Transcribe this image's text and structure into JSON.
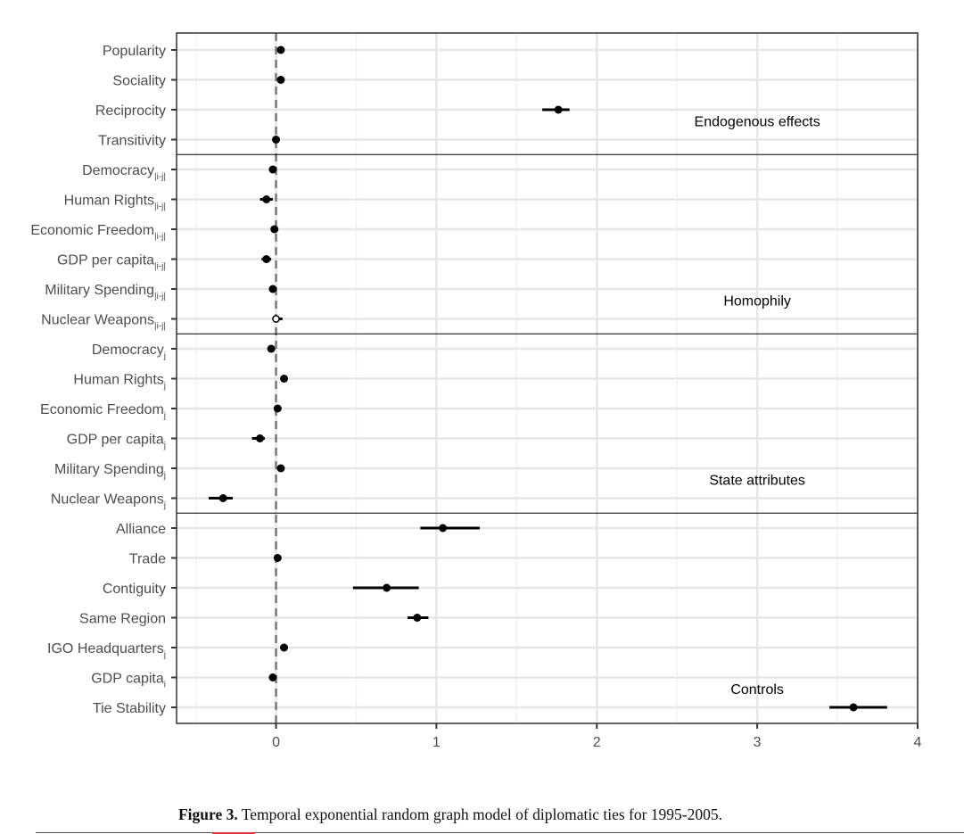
{
  "chart_data": {
    "type": "scatter",
    "subtype": "coefficient-plot",
    "xlim": [
      -0.62,
      4.0
    ],
    "x_ticks": [
      0,
      1,
      2,
      3,
      4
    ],
    "reference_line_x": 0,
    "grid": true,
    "rows": [
      {
        "label": "Popularity",
        "sub": "",
        "estimate": 0.03,
        "lo": 0.03,
        "hi": 0.03,
        "open": false
      },
      {
        "label": "Sociality",
        "sub": "",
        "estimate": 0.03,
        "lo": 0.03,
        "hi": 0.03,
        "open": false
      },
      {
        "label": "Reciprocity",
        "sub": "",
        "estimate": 1.76,
        "lo": 1.66,
        "hi": 1.83,
        "open": false
      },
      {
        "label": "Transitivity",
        "sub": "",
        "estimate": 0.0,
        "lo": 0.0,
        "hi": 0.0,
        "open": false
      },
      {
        "label": "Democracy",
        "sub": "|i-j|",
        "estimate": -0.02,
        "lo": -0.02,
        "hi": -0.02,
        "open": false
      },
      {
        "label": "Human Rights",
        "sub": "|i-j|",
        "estimate": -0.06,
        "lo": -0.1,
        "hi": -0.02,
        "open": false
      },
      {
        "label": "Economic Freedom",
        "sub": "|i-j|",
        "estimate": -0.01,
        "lo": -0.01,
        "hi": -0.01,
        "open": false
      },
      {
        "label": "GDP per capita",
        "sub": "|i-j|",
        "estimate": -0.06,
        "lo": -0.09,
        "hi": -0.03,
        "open": false
      },
      {
        "label": "Military Spending",
        "sub": "|i-j|",
        "estimate": -0.02,
        "lo": -0.02,
        "hi": -0.02,
        "open": false
      },
      {
        "label": "Nuclear Weapons",
        "sub": "|i-j|",
        "estimate": 0.0,
        "lo": 0.0,
        "hi": 0.04,
        "open": true
      },
      {
        "label": "Democracy",
        "sub": "j",
        "estimate": -0.03,
        "lo": -0.03,
        "hi": -0.03,
        "open": false
      },
      {
        "label": "Human Rights",
        "sub": "j",
        "estimate": 0.05,
        "lo": 0.05,
        "hi": 0.05,
        "open": false
      },
      {
        "label": "Economic Freedom",
        "sub": "j",
        "estimate": 0.01,
        "lo": 0.01,
        "hi": 0.01,
        "open": false
      },
      {
        "label": "GDP per capita",
        "sub": "j",
        "estimate": -0.1,
        "lo": -0.15,
        "hi": -0.07,
        "open": false
      },
      {
        "label": "Military Spending",
        "sub": "j",
        "estimate": 0.03,
        "lo": 0.03,
        "hi": 0.03,
        "open": false
      },
      {
        "label": "Nuclear Weapons",
        "sub": "j",
        "estimate": -0.33,
        "lo": -0.42,
        "hi": -0.27,
        "open": false
      },
      {
        "label": "Alliance",
        "sub": "",
        "estimate": 1.04,
        "lo": 0.9,
        "hi": 1.27,
        "open": false
      },
      {
        "label": "Trade",
        "sub": "",
        "estimate": 0.01,
        "lo": 0.01,
        "hi": 0.01,
        "open": false
      },
      {
        "label": "Contiguity",
        "sub": "",
        "estimate": 0.69,
        "lo": 0.48,
        "hi": 0.89,
        "open": false
      },
      {
        "label": "Same Region",
        "sub": "",
        "estimate": 0.88,
        "lo": 0.82,
        "hi": 0.95,
        "open": false
      },
      {
        "label": "IGO Headquarters",
        "sub": "j",
        "estimate": 0.05,
        "lo": 0.03,
        "hi": 0.07,
        "open": false
      },
      {
        "label": "GDP capita",
        "sub": "i",
        "estimate": -0.02,
        "lo": -0.02,
        "hi": -0.02,
        "open": false
      },
      {
        "label": "Tie Stability",
        "sub": "",
        "estimate": 3.6,
        "lo": 3.45,
        "hi": 3.81,
        "open": false
      }
    ],
    "groups": [
      {
        "label": "Endogenous effects",
        "first_row": 0,
        "last_row": 3
      },
      {
        "label": "Homophily",
        "first_row": 4,
        "last_row": 9
      },
      {
        "label": "State attributes",
        "first_row": 10,
        "last_row": 15
      },
      {
        "label": "Controls",
        "first_row": 16,
        "last_row": 22
      }
    ]
  },
  "caption": {
    "figure_label": "Figure 3.",
    "text": "Temporal exponential random graph model of diplomatic ties for 1995-2005."
  }
}
